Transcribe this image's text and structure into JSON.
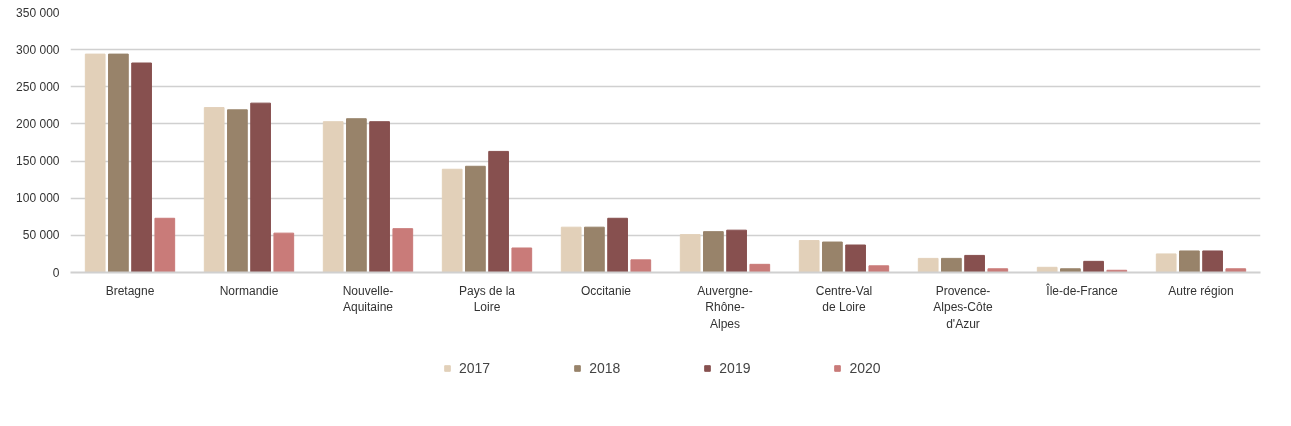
{
  "chart_data": {
    "type": "bar",
    "categories": [
      "Bretagne",
      "Normandie",
      "Nouvelle-\nAquitaine",
      "Pays de la\nLoire",
      "Occitanie",
      "Auvergne-\nRhône-\nAlpes",
      "Centre-Val\nde Loire",
      "Provence-\nAlpes-Côte\nd'Azur",
      "Île-de-France",
      "Autre région"
    ],
    "series": [
      {
        "name": "2017",
        "color": "#e2d0b9",
        "values": [
          294000,
          222000,
          203000,
          139000,
          61000,
          51000,
          43000,
          19000,
          7000,
          25000
        ]
      },
      {
        "name": "2018",
        "color": "#98836a",
        "values": [
          294000,
          219000,
          207000,
          143000,
          61000,
          55000,
          41000,
          19000,
          5000,
          29000
        ]
      },
      {
        "name": "2019",
        "color": "#87504f",
        "values": [
          282000,
          228000,
          203000,
          163000,
          73000,
          57000,
          37000,
          23000,
          15000,
          29000
        ]
      },
      {
        "name": "2020",
        "color": "#c97b79",
        "values": [
          73000,
          53000,
          59000,
          33000,
          17000,
          11000,
          9000,
          5000,
          3000,
          5000
        ]
      }
    ],
    "ylim": [
      0,
      350000
    ],
    "yticks": [
      {
        "value": 0,
        "label": "0"
      },
      {
        "value": 50000,
        "label": "50 000"
      },
      {
        "value": 100000,
        "label": "100 000"
      },
      {
        "value": 150000,
        "label": "150 000"
      },
      {
        "value": 200000,
        "label": "200 000"
      },
      {
        "value": 250000,
        "label": "250 000"
      },
      {
        "value": 300000,
        "label": "300 000"
      },
      {
        "value": 350000,
        "label": "350 000"
      }
    ],
    "grid": "y",
    "legend": "bottom"
  }
}
